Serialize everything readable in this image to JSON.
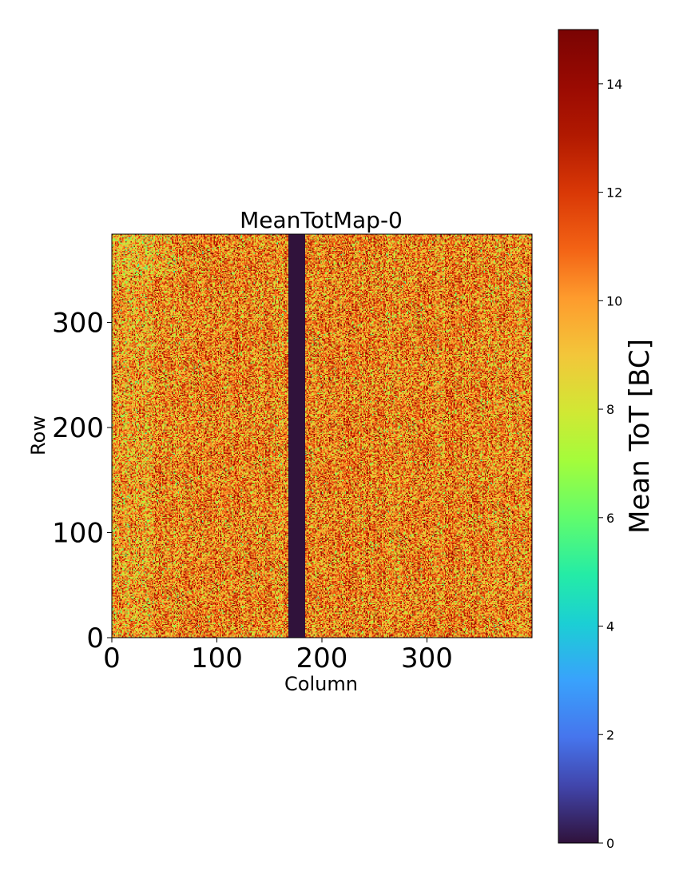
{
  "chart_data": {
    "type": "heatmap",
    "title": "MeanTotMap-0",
    "xlabel": "Column",
    "ylabel": "Row",
    "x_ticks": [
      0,
      100,
      200,
      300
    ],
    "y_ticks": [
      0,
      100,
      200,
      300
    ],
    "xlim": [
      0,
      400
    ],
    "ylim": [
      0,
      384
    ],
    "columns": 400,
    "rows": 384,
    "typical_value_range": [
      7,
      14
    ],
    "dead_columns": [
      168,
      183
    ],
    "dead_value": 0,
    "colorbar": {
      "label": "Mean ToT [BC]",
      "range": [
        0,
        15
      ],
      "ticks": [
        0,
        2,
        4,
        6,
        8,
        10,
        12,
        14
      ],
      "colormap": "turbo"
    }
  },
  "colors": {
    "dead": "#30123b",
    "axis": "#000000"
  }
}
